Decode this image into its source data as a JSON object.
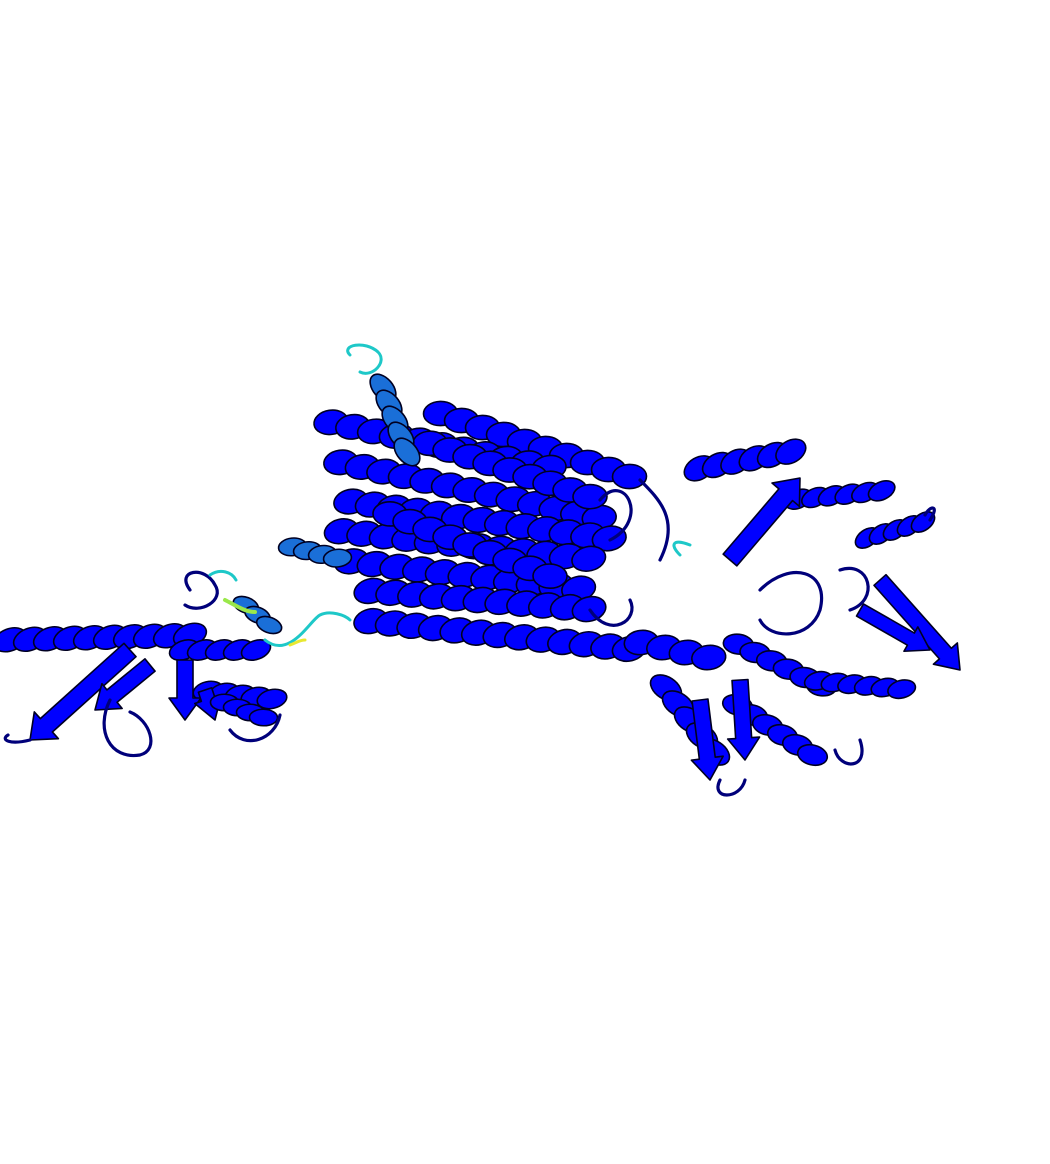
{
  "image": {
    "subject": "protein-cartoon-ribbon",
    "background": "#ffffff",
    "palette": {
      "high_confidence": "#0000ff",
      "high_confidence_dark": "#00007a",
      "medium_high": "#1a6fd8",
      "medium": "#1ec8c8",
      "medium_low": "#9ae84a",
      "low": "#e8e830"
    },
    "domains": [
      "left-domain",
      "transmembrane-core",
      "right-domain"
    ]
  }
}
